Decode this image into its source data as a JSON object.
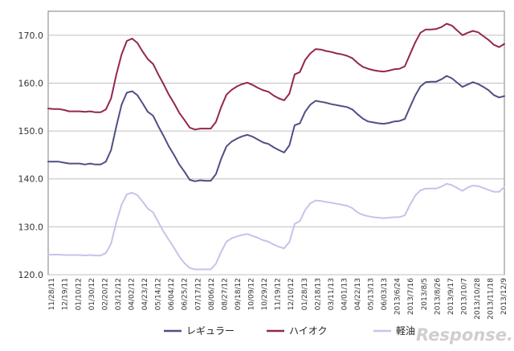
{
  "chart_data": {
    "type": "line",
    "title": "",
    "xlabel": "",
    "ylabel": "",
    "ylim": [
      120,
      175
    ],
    "yticks": [
      "120.0",
      "130.0",
      "140.0",
      "150.0",
      "160.0",
      "170.0"
    ],
    "x_tick_labels": [
      "11/28/11",
      "12/19/11",
      "01/10/12",
      "01/30/12",
      "02/20/12",
      "03/12/12",
      "04/02/12",
      "04/23/12",
      "05/14/12",
      "06/04/12",
      "06/25/12",
      "07/17/12",
      "08/06/12",
      "08/27/12",
      "09/18/12",
      "10/09/12",
      "10/29/12",
      "11/19/12",
      "12/10/12",
      "01/28/13",
      "02/18/13",
      "03/11/13",
      "04/01/13",
      "04/22/13",
      "05/13/13",
      "06/03/13",
      "2013/6/24",
      "2013/7/16",
      "2013/8/5",
      "2013/8/26",
      "2013/9/17",
      "2013/10/7",
      "2013/10/28",
      "2013/11/18",
      "2013/12/9"
    ],
    "grid": true,
    "legend_position": "bottom",
    "series": [
      {
        "name": "レギュラー",
        "color": "#4f4f86",
        "values": [
          143.6,
          143.6,
          143.6,
          143.4,
          143.2,
          143.2,
          143.2,
          143.0,
          143.2,
          143.0,
          143.0,
          143.6,
          146.0,
          151.0,
          155.5,
          158.0,
          158.3,
          157.5,
          155.8,
          154.0,
          153.2,
          151.0,
          149.0,
          146.8,
          145.0,
          143.0,
          141.5,
          139.8,
          139.5,
          139.7,
          139.6,
          139.6,
          141.0,
          144.2,
          146.8,
          147.8,
          148.4,
          148.9,
          149.2,
          148.8,
          148.2,
          147.6,
          147.3,
          146.6,
          146.0,
          145.5,
          147.0,
          151.2,
          151.6,
          154.0,
          155.5,
          156.3,
          156.1,
          155.9,
          155.6,
          155.4,
          155.2,
          155.0,
          154.5,
          153.5,
          152.6,
          152.0,
          151.8,
          151.6,
          151.5,
          151.7,
          152.0,
          152.1,
          152.5,
          155.0,
          157.4,
          159.3,
          160.2,
          160.3,
          160.3,
          160.8,
          161.5,
          161.0,
          160.1,
          159.2,
          159.7,
          160.2,
          159.8,
          159.2,
          158.5,
          157.5,
          157.0,
          157.3
        ]
      },
      {
        "name": "ハイオク",
        "color": "#93284a",
        "values": [
          154.7,
          154.6,
          154.6,
          154.4,
          154.1,
          154.1,
          154.1,
          154.0,
          154.1,
          153.9,
          153.9,
          154.5,
          156.8,
          161.8,
          166.0,
          168.8,
          169.3,
          168.4,
          166.6,
          165.0,
          164.0,
          161.8,
          159.8,
          157.6,
          155.8,
          153.8,
          152.3,
          150.7,
          150.3,
          150.5,
          150.5,
          150.5,
          151.9,
          155.0,
          157.6,
          158.6,
          159.3,
          159.8,
          160.1,
          159.6,
          159.0,
          158.5,
          158.2,
          157.4,
          156.8,
          156.4,
          157.8,
          161.8,
          162.3,
          164.8,
          166.2,
          167.1,
          167.0,
          166.7,
          166.5,
          166.2,
          166.0,
          165.7,
          165.2,
          164.2,
          163.4,
          163.0,
          162.7,
          162.5,
          162.4,
          162.6,
          162.9,
          163.0,
          163.5,
          166.0,
          168.5,
          170.5,
          171.2,
          171.2,
          171.3,
          171.7,
          172.4,
          172.0,
          171.0,
          170.0,
          170.5,
          170.9,
          170.6,
          169.8,
          169.0,
          168.0,
          167.5,
          168.2
        ]
      },
      {
        "name": "軽油",
        "color": "#c4c4ea",
        "values": [
          124.2,
          124.2,
          124.2,
          124.1,
          124.1,
          124.1,
          124.1,
          124.0,
          124.1,
          124.0,
          124.0,
          124.5,
          126.5,
          131.0,
          134.6,
          136.8,
          137.1,
          136.6,
          135.3,
          133.8,
          133.0,
          131.0,
          129.0,
          127.3,
          125.6,
          123.8,
          122.4,
          121.4,
          121.1,
          121.1,
          121.1,
          121.1,
          122.3,
          124.8,
          126.9,
          127.6,
          128.0,
          128.3,
          128.5,
          128.1,
          127.7,
          127.2,
          126.9,
          126.3,
          125.8,
          125.5,
          126.8,
          130.6,
          131.2,
          133.5,
          134.9,
          135.5,
          135.4,
          135.2,
          135.0,
          134.8,
          134.6,
          134.4,
          133.9,
          133.0,
          132.5,
          132.2,
          132.0,
          131.9,
          131.8,
          131.9,
          132.0,
          132.0,
          132.4,
          134.6,
          136.5,
          137.6,
          138.0,
          138.0,
          138.0,
          138.4,
          139.0,
          138.7,
          138.1,
          137.5,
          138.2,
          138.6,
          138.5,
          138.1,
          137.7,
          137.3,
          137.3,
          138.3
        ]
      }
    ]
  },
  "watermark": "Response."
}
